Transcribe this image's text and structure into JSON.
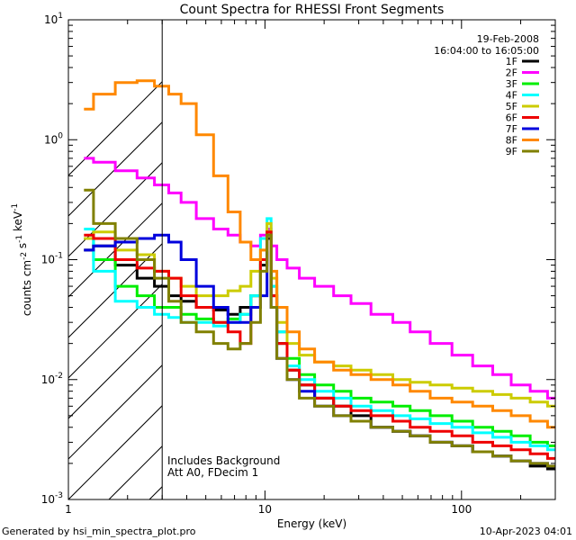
{
  "chart_data": {
    "type": "line",
    "title": "Count Spectra for RHESSI Front Segments",
    "xlabel": "Energy (keV)",
    "ylabel": "counts cm^-2 s^-1 keV^-1",
    "xscale": "log",
    "yscale": "log",
    "xlim": [
      1,
      300
    ],
    "ylim": [
      0.001,
      10
    ],
    "x_ticks": [
      1,
      10,
      100
    ],
    "x_tick_labels": [
      "1",
      "10",
      "100"
    ],
    "y_ticks": [
      0.001,
      0.01,
      0.1,
      1,
      10
    ],
    "y_tick_labels": [
      "10^-3",
      "10^-2",
      "10^-1",
      "10^0",
      "10^1"
    ],
    "hatched_region_max_kev": 3,
    "header_lines": [
      "19-Feb-2008",
      "16:04:00 to 16:05:00"
    ],
    "annotations": [
      "Includes Background",
      "Att A0, FDecim 1"
    ],
    "x": [
      1.2,
      1.5,
      2,
      2.5,
      3,
      3.5,
      4,
      5,
      6,
      7,
      8,
      9,
      10,
      10.5,
      11,
      12,
      14,
      16,
      20,
      25,
      30,
      40,
      50,
      60,
      80,
      100,
      130,
      160,
      200,
      250,
      300
    ],
    "series": [
      {
        "name": "1F",
        "color": "#000000",
        "values": [
          0.12,
          0.13,
          0.09,
          0.07,
          0.06,
          0.05,
          0.045,
          0.04,
          0.038,
          0.035,
          0.04,
          0.05,
          0.09,
          0.15,
          0.05,
          0.02,
          0.012,
          0.009,
          0.007,
          0.006,
          0.005,
          0.004,
          0.0037,
          0.0034,
          0.003,
          0.0028,
          0.0025,
          0.0023,
          0.0021,
          0.0019,
          0.0018
        ]
      },
      {
        "name": "2F",
        "color": "#ff00ff",
        "values": [
          0.7,
          0.65,
          0.55,
          0.48,
          0.42,
          0.36,
          0.3,
          0.22,
          0.18,
          0.16,
          0.14,
          0.13,
          0.16,
          0.18,
          0.13,
          0.1,
          0.085,
          0.07,
          0.06,
          0.05,
          0.043,
          0.035,
          0.03,
          0.025,
          0.02,
          0.016,
          0.013,
          0.011,
          0.009,
          0.008,
          0.007
        ]
      },
      {
        "name": "3F",
        "color": "#00ee00",
        "values": [
          0.15,
          0.1,
          0.06,
          0.05,
          0.04,
          0.04,
          0.035,
          0.032,
          0.03,
          0.032,
          0.035,
          0.05,
          0.1,
          0.17,
          0.06,
          0.025,
          0.015,
          0.011,
          0.009,
          0.008,
          0.007,
          0.0065,
          0.006,
          0.0055,
          0.005,
          0.0045,
          0.004,
          0.0037,
          0.0034,
          0.003,
          0.0028
        ]
      },
      {
        "name": "4F",
        "color": "#00ffff",
        "values": [
          0.18,
          0.08,
          0.045,
          0.04,
          0.035,
          0.033,
          0.03,
          0.03,
          0.028,
          0.03,
          0.035,
          0.05,
          0.15,
          0.22,
          0.06,
          0.025,
          0.013,
          0.01,
          0.008,
          0.007,
          0.006,
          0.0055,
          0.005,
          0.0047,
          0.0043,
          0.004,
          0.0036,
          0.0033,
          0.003,
          0.0028,
          0.0026
        ]
      },
      {
        "name": "5F",
        "color": "#cccc00",
        "values": [
          0.15,
          0.17,
          0.12,
          0.11,
          0.08,
          0.07,
          0.06,
          0.05,
          0.05,
          0.055,
          0.06,
          0.08,
          0.12,
          0.2,
          0.07,
          0.03,
          0.02,
          0.016,
          0.014,
          0.013,
          0.012,
          0.011,
          0.01,
          0.0095,
          0.009,
          0.0085,
          0.008,
          0.0075,
          0.007,
          0.0065,
          0.006
        ]
      },
      {
        "name": "6F",
        "color": "#ee0000",
        "values": [
          0.16,
          0.15,
          0.1,
          0.085,
          0.08,
          0.07,
          0.05,
          0.04,
          0.03,
          0.025,
          0.02,
          0.04,
          0.1,
          0.17,
          0.05,
          0.02,
          0.012,
          0.009,
          0.007,
          0.006,
          0.0055,
          0.005,
          0.0045,
          0.004,
          0.0037,
          0.0034,
          0.003,
          0.0028,
          0.0026,
          0.0024,
          0.0022
        ]
      },
      {
        "name": "7F",
        "color": "#0000dd",
        "values": [
          0.12,
          0.13,
          0.14,
          0.15,
          0.16,
          0.14,
          0.1,
          0.06,
          0.04,
          0.03,
          0.03,
          0.04,
          0.05,
          0.16,
          0.04,
          0.015,
          0.01,
          0.008,
          0.006,
          0.005,
          0.0045,
          0.004,
          0.0037,
          0.0034,
          0.003,
          0.0028,
          0.0025,
          0.0023,
          0.0021,
          0.002,
          0.0019
        ]
      },
      {
        "name": "8F",
        "color": "#ff8800",
        "values": [
          1.8,
          2.4,
          3.0,
          3.1,
          2.8,
          2.4,
          2.0,
          1.1,
          0.5,
          0.25,
          0.14,
          0.1,
          0.12,
          0.16,
          0.08,
          0.04,
          0.025,
          0.018,
          0.014,
          0.012,
          0.011,
          0.01,
          0.009,
          0.008,
          0.007,
          0.0065,
          0.006,
          0.0055,
          0.005,
          0.0045,
          0.004
        ]
      },
      {
        "name": "9F",
        "color": "#808000",
        "values": [
          0.38,
          0.2,
          0.15,
          0.1,
          0.07,
          0.045,
          0.03,
          0.025,
          0.02,
          0.018,
          0.02,
          0.03,
          0.08,
          0.16,
          0.04,
          0.015,
          0.01,
          0.007,
          0.006,
          0.005,
          0.0045,
          0.004,
          0.0037,
          0.0034,
          0.003,
          0.0028,
          0.0025,
          0.0023,
          0.0021,
          0.002,
          0.0019
        ]
      }
    ]
  },
  "footer": {
    "left": "Generated by hsi_min_spectra_plot.pro",
    "right": "10-Apr-2023 04:01"
  }
}
